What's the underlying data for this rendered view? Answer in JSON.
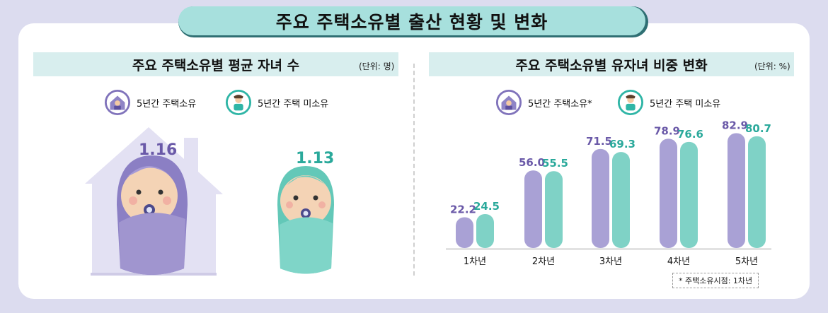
{
  "title": "주요 주택소유별 출산 현황 및 변화",
  "left_panel": {
    "title": "주요 주택소유별 평균 자녀 수",
    "unit": "(단위: 명)",
    "legend": [
      {
        "label": "5년간 주택소유",
        "icon": "house-person-icon",
        "color": "#7b6cb6"
      },
      {
        "label": "5년간 주택 미소유",
        "icon": "person-icon",
        "color": "#2fb5a6"
      }
    ]
  },
  "right_panel": {
    "title": "주요 주택소유별 유자녀 비중 변화",
    "unit": "(단위: %)",
    "legend": [
      {
        "label": "5년간 주택소유*",
        "icon": "house-person-icon",
        "color": "#7b6cb6"
      },
      {
        "label": "5년간 주택 미소유",
        "icon": "person-icon",
        "color": "#2fb5a6"
      }
    ],
    "note": "* 주택소유시점: 1차년"
  },
  "chart_data": [
    {
      "type": "bar",
      "categories": [
        "5년간 주택소유",
        "5년간 주택 미소유"
      ],
      "values": [
        1.16,
        1.13
      ],
      "value_labels": [
        "1.16",
        "1.13"
      ],
      "colors": [
        "#7b6cb6",
        "#2fb5a6"
      ]
    },
    {
      "type": "bar",
      "categories": [
        "1차년",
        "2차년",
        "3차년",
        "4차년",
        "5차년"
      ],
      "series": [
        {
          "name": "5년간 주택소유*",
          "values": [
            22.2,
            56.0,
            71.5,
            78.9,
            82.9
          ],
          "labels": [
            "22.2",
            "56.0",
            "71.5",
            "78.9",
            "82.9"
          ],
          "color": "#6a59a8"
        },
        {
          "name": "5년간 주택 미소유",
          "values": [
            24.5,
            55.5,
            69.3,
            76.6,
            80.7
          ],
          "labels": [
            "24.5",
            "55.5",
            "69.3",
            "76.6",
            "80.7"
          ],
          "color": "#2aa99b"
        }
      ],
      "ylim": [
        0,
        100
      ]
    }
  ]
}
